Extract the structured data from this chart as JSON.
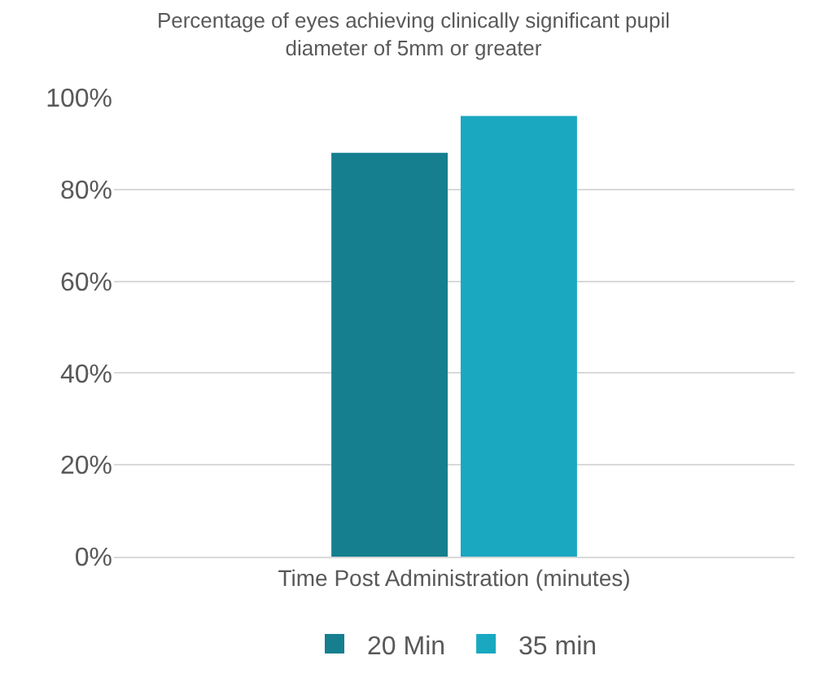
{
  "chart_data": {
    "type": "bar",
    "title": "Percentage of eyes achieving clinically significant pupil diameter of 5mm or greater",
    "categories": [
      "Time Post Administration (minutes)"
    ],
    "series": [
      {
        "name": "20 Min",
        "color": "#167f8f",
        "values": [
          88
        ]
      },
      {
        "name": "35 min",
        "color": "#1aa8c1",
        "values": [
          96
        ]
      }
    ],
    "ylim": [
      0,
      100
    ],
    "yticks": [
      {
        "value": 0,
        "label": "0%"
      },
      {
        "value": 20,
        "label": "20%"
      },
      {
        "value": 40,
        "label": "40%"
      },
      {
        "value": 60,
        "label": "60%"
      },
      {
        "value": 80,
        "label": "80%"
      },
      {
        "value": 100,
        "label": "100%"
      }
    ],
    "grid": "y",
    "legend": "bottom"
  }
}
